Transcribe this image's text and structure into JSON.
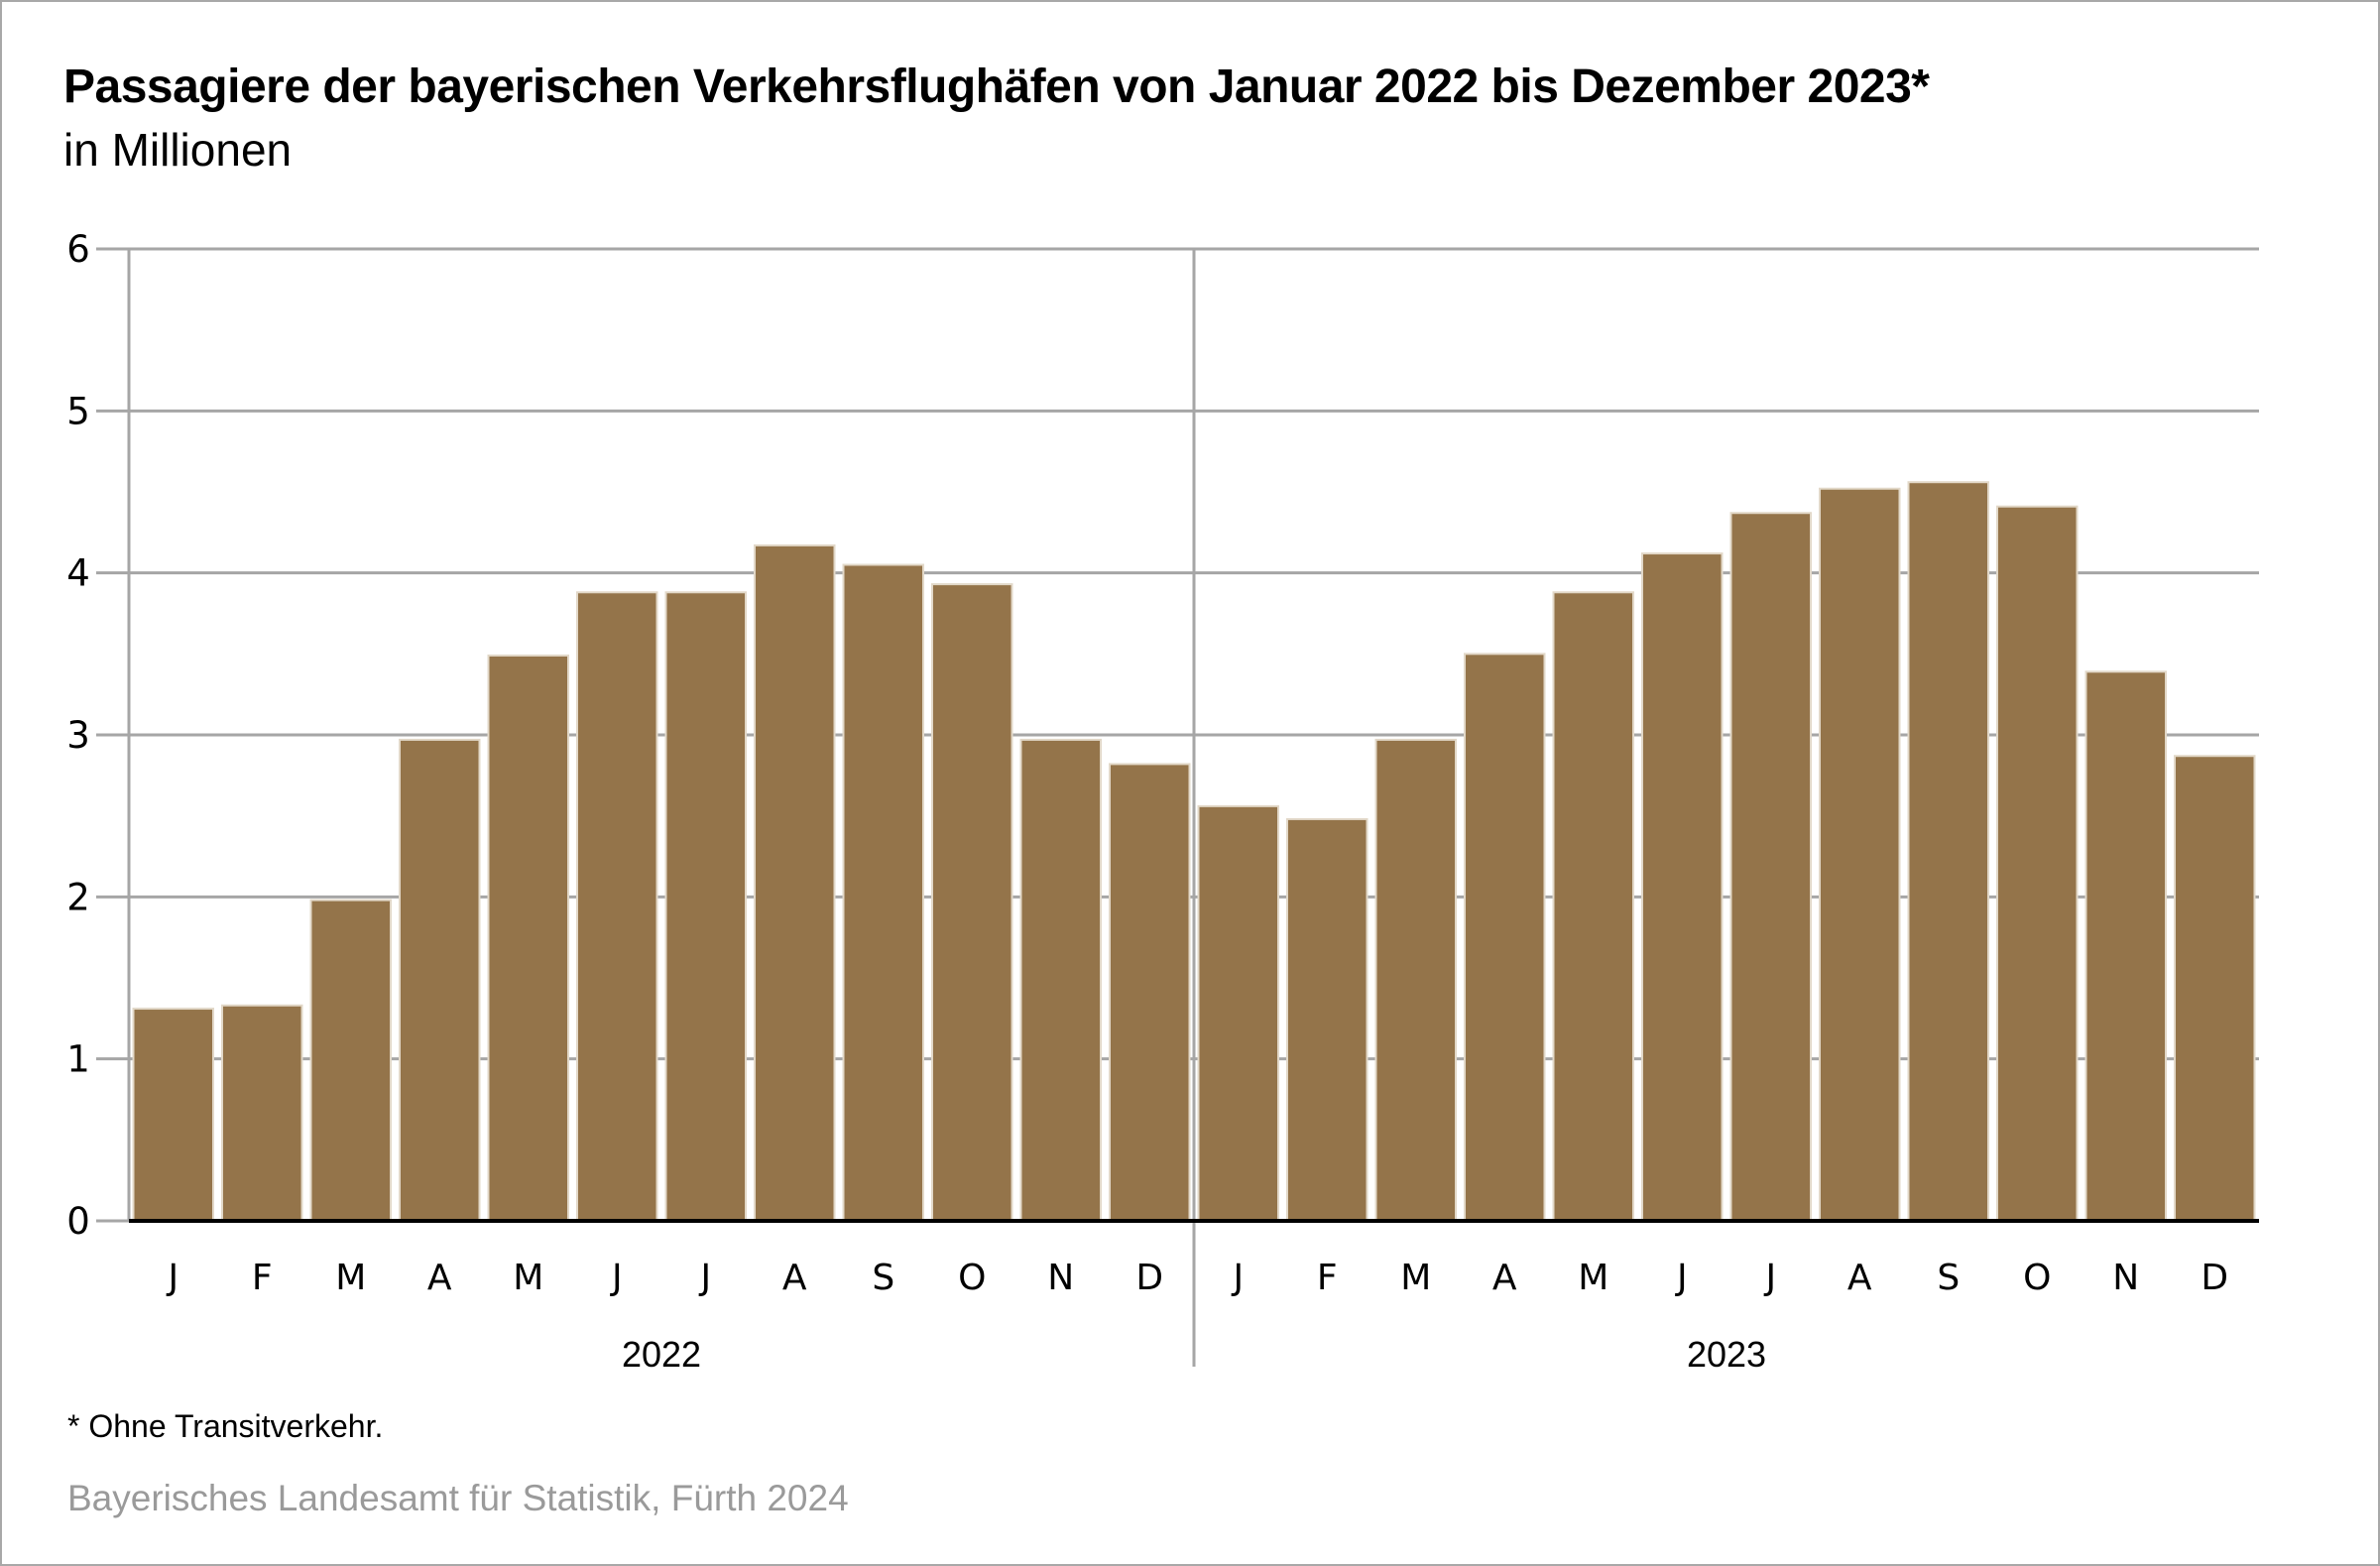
{
  "chart_data": {
    "type": "bar",
    "title": "Passagiere der bayerischen Verkehrsflughäfen von Januar 2022 bis Dezember 2023*",
    "subtitle": "in Millionen",
    "xlabel": "",
    "ylabel": "",
    "ylim": [
      0,
      6
    ],
    "yticks": [
      "0",
      "1",
      "2",
      "3",
      "4",
      "5",
      "6"
    ],
    "grid": true,
    "bar_color": "#94744a",
    "groups": [
      {
        "year": "2022",
        "categories": [
          "J",
          "F",
          "M",
          "A",
          "M",
          "J",
          "J",
          "A",
          "S",
          "O",
          "N",
          "D"
        ],
        "values": [
          1.31,
          1.33,
          1.98,
          2.97,
          3.49,
          3.88,
          3.88,
          4.17,
          4.05,
          3.93,
          2.97,
          2.82
        ]
      },
      {
        "year": "2023",
        "categories": [
          "J",
          "F",
          "M",
          "A",
          "M",
          "J",
          "J",
          "A",
          "S",
          "O",
          "N",
          "D"
        ],
        "values": [
          2.56,
          2.48,
          2.97,
          3.5,
          3.88,
          4.12,
          4.37,
          4.52,
          4.56,
          4.41,
          3.39,
          2.87
        ]
      }
    ]
  },
  "footnote": "* Ohne Transitverkehr.",
  "source": "Bayerisches Landesamt für Statistik, Fürth 2024"
}
